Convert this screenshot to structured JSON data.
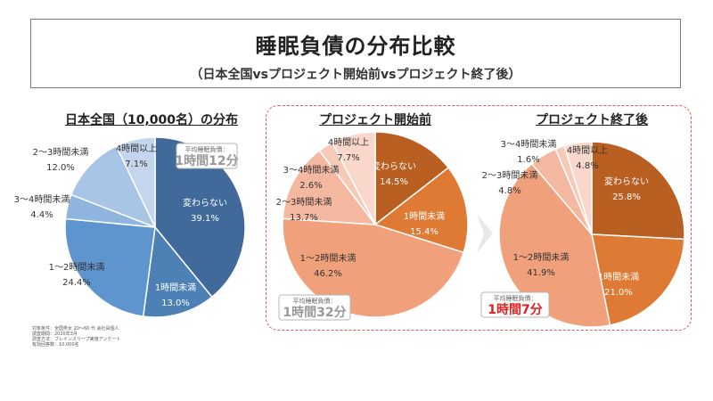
{
  "header": {
    "title": "睡眠負債の分布比較",
    "subtitle": "（日本全国vsプロジェクト開始前vsプロジェクト終了後）"
  },
  "chart_data": [
    {
      "type": "pie",
      "title": "日本全国（10,000名）の分布",
      "slices": [
        {
          "label": "変わらない",
          "value": 39.1,
          "pct": "39.1%",
          "color": "#3f6a99"
        },
        {
          "label": "1時間未満",
          "value": 13.0,
          "pct": "13.0%",
          "color": "#4d81b6"
        },
        {
          "label": "1～2時間未満",
          "value": 24.4,
          "pct": "24.4%",
          "color": "#5f95cf"
        },
        {
          "label": "3～4時間未満",
          "value": 4.4,
          "pct": "4.4%",
          "color": "#8fb4dd"
        },
        {
          "label": "2～3時間未満",
          "value": 12.0,
          "pct": "12.0%",
          "color": "#a8c5e6"
        },
        {
          "label": "4時間以上",
          "value": 7.1,
          "pct": "7.1%",
          "color": "#c3d6ed"
        }
      ],
      "avg": {
        "label": "平均睡眠負債：",
        "value": "1時間12分",
        "color": "#999999"
      }
    },
    {
      "type": "pie",
      "title": "プロジェクト開始前",
      "slices": [
        {
          "label": "変わらない",
          "value": 14.5,
          "pct": "14.5%",
          "color": "#b95f21"
        },
        {
          "label": "1時間未満",
          "value": 15.4,
          "pct": "15.4%",
          "color": "#df7a35"
        },
        {
          "label": "1～2時間未満",
          "value": 46.2,
          "pct": "46.2%",
          "color": "#f0a07a"
        },
        {
          "label": "2～3時間未満",
          "value": 13.7,
          "pct": "13.7%",
          "color": "#f4b7a0"
        },
        {
          "label": "3～4時間未満",
          "value": 2.6,
          "pct": "2.6%",
          "color": "#f7c9b7"
        },
        {
          "label": "4時間以上",
          "value": 7.7,
          "pct": "7.7%",
          "color": "#f9d8cb"
        }
      ],
      "avg": {
        "label": "平均睡眠負債：",
        "value": "1時間32分",
        "color": "#999999"
      }
    },
    {
      "type": "pie",
      "title": "プロジェクト終了後",
      "slices": [
        {
          "label": "変わらない",
          "value": 25.8,
          "pct": "25.8%",
          "color": "#b95f21"
        },
        {
          "label": "1時間未満",
          "value": 21.0,
          "pct": "21.0%",
          "color": "#df7a35"
        },
        {
          "label": "1～2時間未満",
          "value": 41.9,
          "pct": "41.9%",
          "color": "#f0a07a"
        },
        {
          "label": "2～3時間未満",
          "value": 4.8,
          "pct": "4.8%",
          "color": "#f4b7a0"
        },
        {
          "label": "3～4時間未満",
          "value": 1.6,
          "pct": "1.6%",
          "color": "#f7c9b7"
        },
        {
          "label": "4時間以上",
          "value": 4.8,
          "pct": "4.8%",
          "color": "#f9d8cb"
        }
      ],
      "avg": {
        "label": "平均睡眠負債：",
        "value": "1時間7分",
        "color": "#e02020"
      }
    }
  ],
  "footnote": [
    "対象条件：全国男女 20～60 代 会社員個人",
    "調査期間：2020年3月",
    "調査方法：ブレインスリープ実施アンケート",
    "有効回答数：10,000名"
  ]
}
